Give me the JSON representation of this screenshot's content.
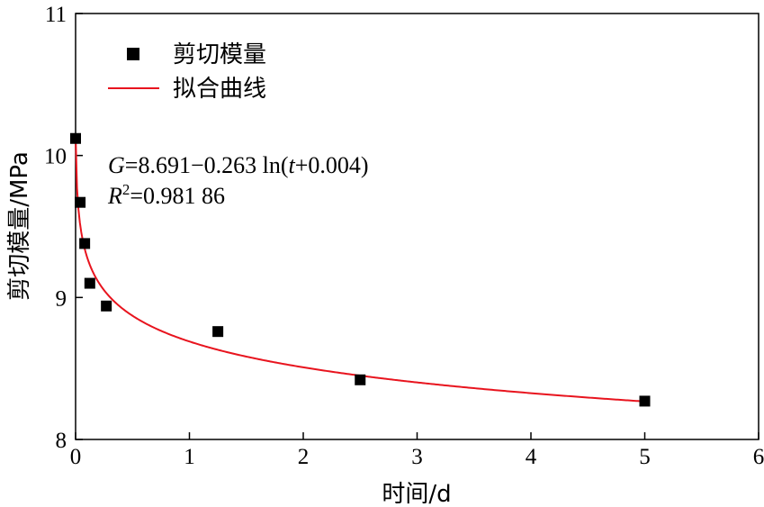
{
  "chart_data": {
    "type": "scatter",
    "xlabel": "时间/d",
    "ylabel": "剪切模量/MPa",
    "xlim": [
      0,
      6
    ],
    "ylim": [
      8,
      11
    ],
    "xticks": [
      0,
      1,
      2,
      3,
      4,
      5,
      6
    ],
    "yticks": [
      8,
      9,
      10,
      11
    ],
    "grid": false,
    "legend_position": "top-left",
    "series": [
      {
        "name": "剪切模量",
        "kind": "scatter",
        "color": "#000000",
        "marker": "square",
        "x": [
          0.0,
          0.04,
          0.08,
          0.125,
          0.27,
          1.25,
          2.5,
          5.0
        ],
        "y": [
          10.12,
          9.67,
          9.38,
          9.1,
          8.94,
          8.76,
          8.42,
          8.27
        ]
      },
      {
        "name": "拟合曲线",
        "kind": "line",
        "color": "#e8141e",
        "function": {
          "form": "a - b*ln(t + c)",
          "a": 8.691,
          "b": 0.263,
          "c": 0.004
        },
        "x_range": [
          0,
          5
        ]
      }
    ],
    "annotations": {
      "equation": {
        "var": "G",
        "rest": "=8.691−0.263 ln(",
        "t": "t",
        "tail": "+0.004)"
      },
      "r2": {
        "var": "R",
        "sup": "2",
        "rest": "=0.981 86"
      }
    }
  }
}
